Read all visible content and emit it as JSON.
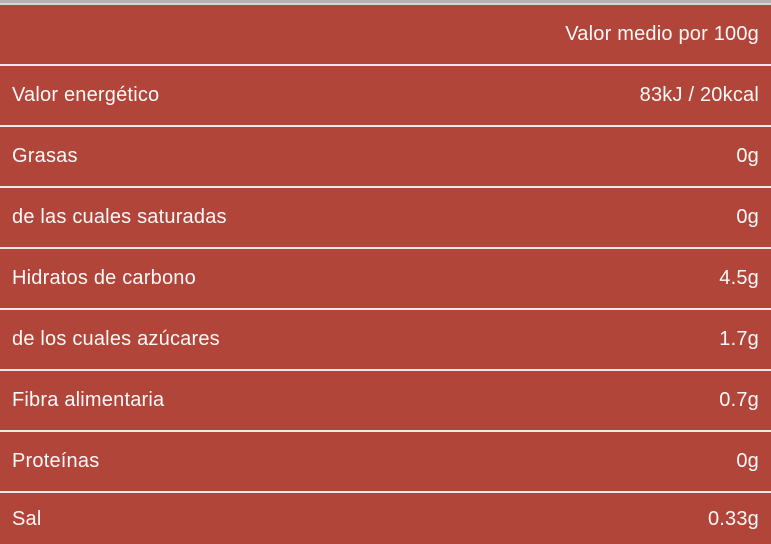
{
  "table": {
    "header": {
      "value": "Valor medio por 100g"
    },
    "rows": [
      {
        "label": "Valor energético",
        "value": "83kJ / 20kcal"
      },
      {
        "label": "Grasas",
        "value": "0g"
      },
      {
        "label": "de las cuales saturadas",
        "value": "0g"
      },
      {
        "label": "Hidratos de carbono",
        "value": "4.5g"
      },
      {
        "label": "de los cuales azúcares",
        "value": "1.7g"
      },
      {
        "label": "Fibra alimentaria",
        "value": "0.7g"
      },
      {
        "label": "Proteínas",
        "value": "0g"
      },
      {
        "label": "Sal",
        "value": "0.33g"
      }
    ],
    "colors": {
      "row_background": "#b1453a",
      "text": "#fcf9f8",
      "separator": "#ece8e7",
      "top_strip": "#b5b0b3"
    }
  }
}
